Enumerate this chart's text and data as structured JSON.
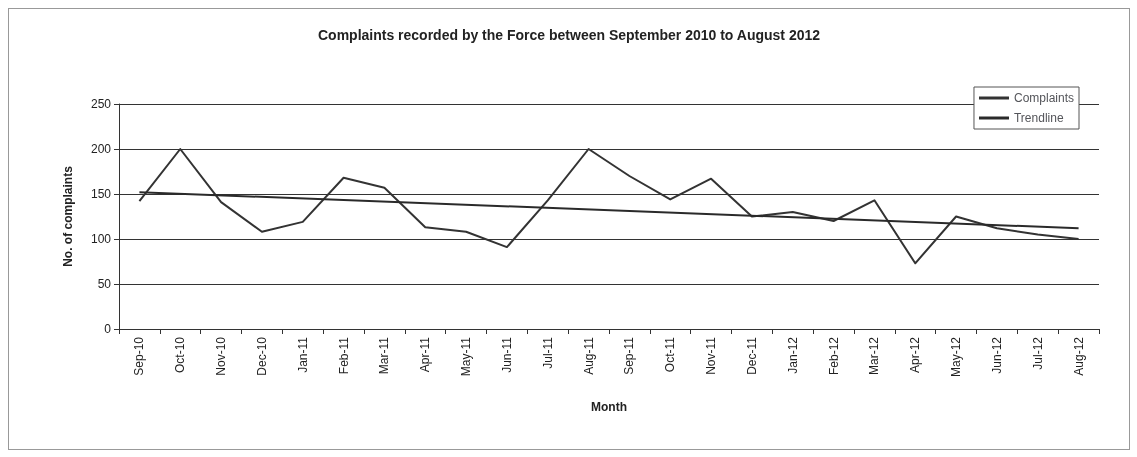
{
  "chart_data": {
    "type": "line",
    "title": "Complaints recorded by the Force between September 2010 to August 2012",
    "xlabel": "Month",
    "ylabel": "No. of complaints",
    "categories": [
      "Sep-10",
      "Oct-10",
      "Nov-10",
      "Dec-10",
      "Jan-11",
      "Feb-11",
      "Mar-11",
      "Apr-11",
      "May-11",
      "Jun-11",
      "Jul-11",
      "Aug-11",
      "Sep-11",
      "Oct-11",
      "Nov-11",
      "Dec-11",
      "Jan-12",
      "Feb-12",
      "Mar-12",
      "Apr-12",
      "May-12",
      "Jun-12",
      "Jul-12",
      "Aug-12"
    ],
    "series": [
      {
        "name": "Complaints",
        "color": "#333333",
        "values": [
          142,
          200,
          141,
          108,
          119,
          168,
          157,
          113,
          108,
          91,
          143,
          200,
          170,
          144,
          167,
          125,
          130,
          120,
          143,
          73,
          125,
          112,
          105,
          100
        ]
      },
      {
        "name": "Trendline",
        "color": "#2a2a2a",
        "x": [
          "Sep-10",
          "Aug-12"
        ],
        "values": [
          152,
          112
        ]
      }
    ],
    "ylim": [
      0,
      250
    ],
    "yticks": [
      0,
      50,
      100,
      150,
      200,
      250
    ],
    "grid": "y",
    "legend": "top right",
    "marker": "none",
    "line_style": "solid"
  }
}
